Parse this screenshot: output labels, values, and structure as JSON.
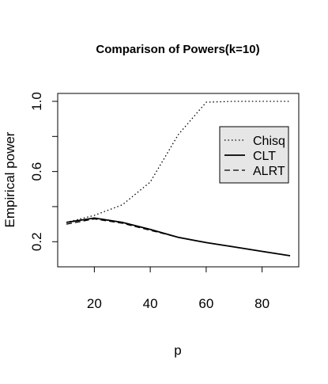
{
  "chart_data": {
    "type": "line",
    "title": "Comparison of Powers(k=10)",
    "xlabel": "p",
    "ylabel": "Empirical power",
    "xlim": [
      10,
      90
    ],
    "ylim": [
      0.12,
      1.0
    ],
    "xticks": [
      "20",
      "40",
      "60",
      "80"
    ],
    "yticks": [
      "0.2",
      "0.6",
      "1.0"
    ],
    "ytick_minor": [
      0.4,
      0.8
    ],
    "grid": false,
    "legend_position": "top-right",
    "series": [
      {
        "name": "Chisq",
        "line_style": "dotted",
        "color": "#000000",
        "x": [
          10,
          20,
          30,
          40,
          50,
          60,
          70,
          80,
          90
        ],
        "y": [
          0.31,
          0.35,
          0.41,
          0.54,
          0.81,
          0.995,
          1.0,
          1.0,
          1.0
        ]
      },
      {
        "name": "CLT",
        "line_style": "solid",
        "color": "#000000",
        "x": [
          10,
          20,
          30,
          40,
          50,
          60,
          70,
          80,
          90
        ],
        "y": [
          0.31,
          0.335,
          0.31,
          0.27,
          0.225,
          0.195,
          0.17,
          0.145,
          0.12
        ]
      },
      {
        "name": "ALRT",
        "line_style": "dashed",
        "color": "#000000",
        "x": [
          10,
          20,
          30,
          40,
          50,
          60,
          70,
          80,
          90
        ],
        "y": [
          0.3,
          0.33,
          0.305,
          0.265,
          0.225,
          0.195,
          0.17,
          0.145,
          0.12
        ]
      }
    ]
  }
}
